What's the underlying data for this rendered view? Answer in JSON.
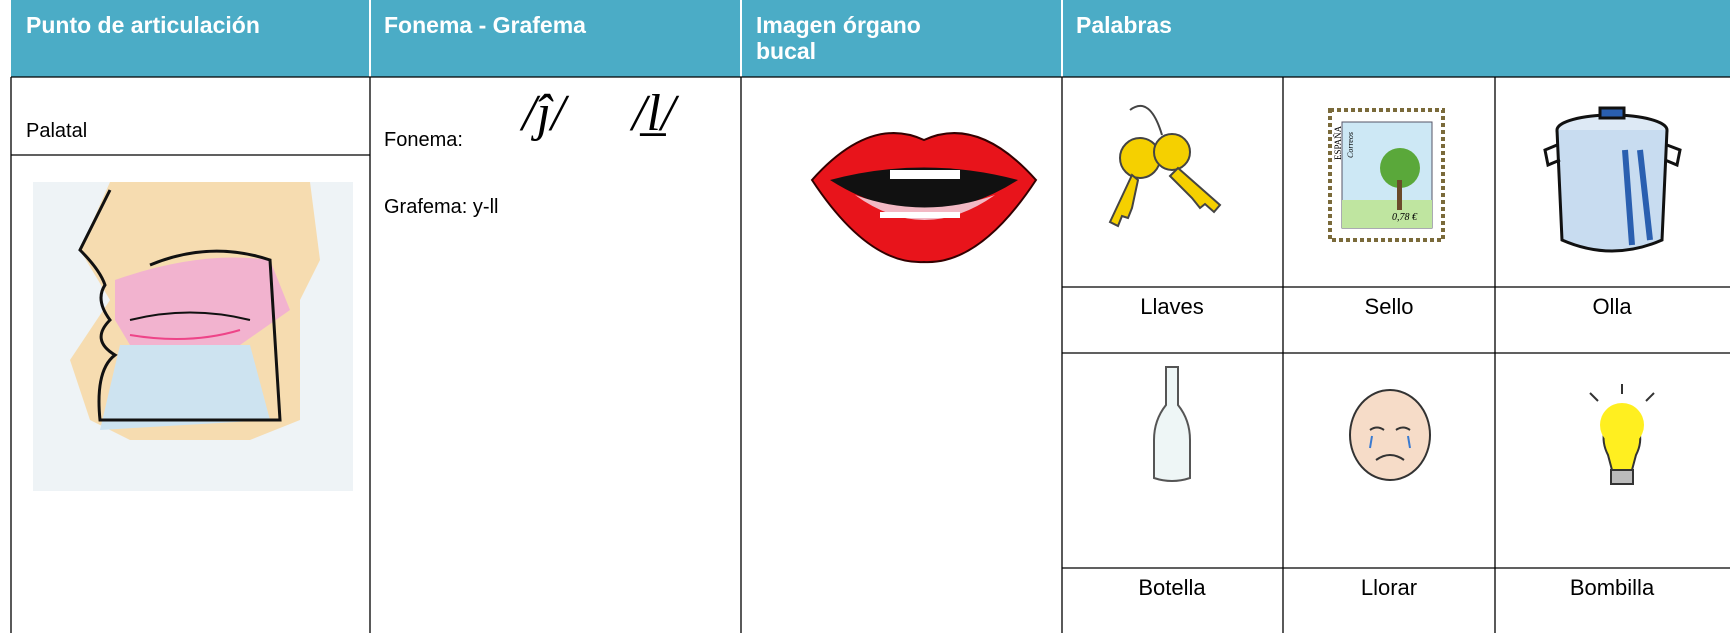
{
  "table": {
    "headers": [
      "Punto de articulación",
      "Fonema - Grafema",
      "Imagen órgano bucal",
      "Palabras"
    ],
    "row": {
      "punto": "Palatal",
      "fonema_label": "Fonema:",
      "fonemas": [
        "/ĵ/",
        "/l̲/"
      ],
      "grafema": "Grafema: y-ll",
      "stamp": [
        "ESPAÑA",
        "Correos",
        "0,78 €"
      ],
      "palabras": [
        "Llaves",
        "Sello",
        "Olla",
        "Botella",
        "Llorar",
        "Bombilla"
      ]
    }
  }
}
